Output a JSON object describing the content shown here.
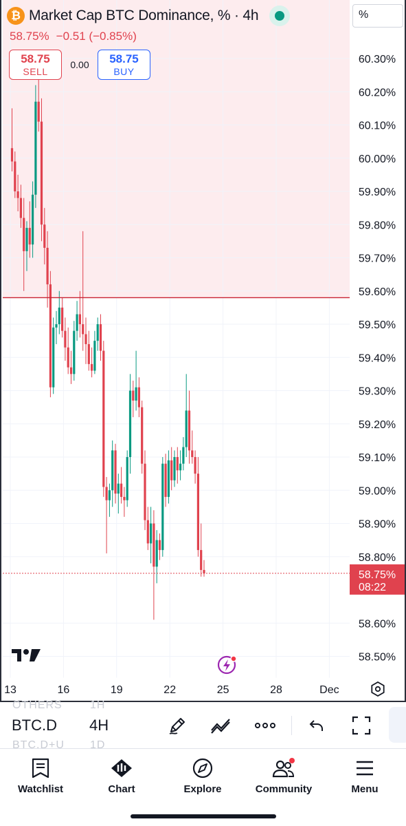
{
  "header": {
    "logo_glyph": "₿",
    "title": "Market Cap BTC Dominance, % · 4h",
    "change_pct": "58.75%",
    "change_abs": "−0.51 (−0.85%)",
    "unit": "%"
  },
  "trade": {
    "sell_price": "58.75",
    "sell_label": "SELL",
    "spread": "0.00",
    "buy_price": "58.75",
    "buy_label": "BUY"
  },
  "colors": {
    "up": "#089981",
    "down": "#e0424e",
    "alert_line": "#c82333",
    "zone": "#fdecee",
    "accent": "#2962ff"
  },
  "chart_data": {
    "type": "candlestick",
    "title": "Market Cap BTC Dominance, %",
    "interval": "4h",
    "ylim": [
      58.43,
      60.45
    ],
    "y_ticks": [
      "60.30%",
      "60.20%",
      "60.10%",
      "60.00%",
      "59.90%",
      "59.80%",
      "59.70%",
      "59.60%",
      "59.50%",
      "59.40%",
      "59.30%",
      "59.20%",
      "59.10%",
      "59.00%",
      "58.90%",
      "58.80%",
      "58.60%",
      "58.50%"
    ],
    "y_tick_values": [
      60.3,
      60.2,
      60.1,
      60.0,
      59.9,
      59.8,
      59.7,
      59.6,
      59.5,
      59.4,
      59.3,
      59.2,
      59.1,
      59.0,
      58.9,
      58.8,
      58.6,
      58.5
    ],
    "x_ticks": [
      "13",
      "16",
      "19",
      "22",
      "25",
      "28",
      "Dec"
    ],
    "x_tick_index": [
      0,
      18,
      36,
      54,
      72,
      90,
      108
    ],
    "alert_level": 59.58,
    "last_price": 58.75,
    "last_price_label": "58.75%",
    "countdown": "08:22",
    "candles": [
      {
        "o": 60.03,
        "h": 60.15,
        "l": 59.96,
        "c": 59.99
      },
      {
        "o": 59.99,
        "h": 60.02,
        "l": 59.88,
        "c": 59.9
      },
      {
        "o": 59.9,
        "h": 59.95,
        "l": 59.84,
        "c": 59.88
      },
      {
        "o": 59.88,
        "h": 59.92,
        "l": 59.79,
        "c": 59.82
      },
      {
        "o": 59.82,
        "h": 59.88,
        "l": 59.6,
        "c": 59.72
      },
      {
        "o": 59.72,
        "h": 59.81,
        "l": 59.66,
        "c": 59.79
      },
      {
        "o": 59.79,
        "h": 59.87,
        "l": 59.7,
        "c": 59.74
      },
      {
        "o": 59.74,
        "h": 59.93,
        "l": 59.7,
        "c": 59.89
      },
      {
        "o": 59.89,
        "h": 60.22,
        "l": 59.85,
        "c": 60.17
      },
      {
        "o": 60.17,
        "h": 60.25,
        "l": 60.08,
        "c": 60.11
      },
      {
        "o": 60.11,
        "h": 60.18,
        "l": 59.75,
        "c": 59.8
      },
      {
        "o": 59.8,
        "h": 59.85,
        "l": 59.68,
        "c": 59.73
      },
      {
        "o": 59.73,
        "h": 59.78,
        "l": 59.55,
        "c": 59.62
      },
      {
        "o": 59.62,
        "h": 59.66,
        "l": 59.28,
        "c": 59.31
      },
      {
        "o": 59.31,
        "h": 59.52,
        "l": 59.29,
        "c": 59.49
      },
      {
        "o": 59.49,
        "h": 59.54,
        "l": 59.44,
        "c": 59.5
      },
      {
        "o": 59.5,
        "h": 59.6,
        "l": 59.47,
        "c": 59.55
      },
      {
        "o": 59.55,
        "h": 59.58,
        "l": 59.46,
        "c": 59.48
      },
      {
        "o": 59.48,
        "h": 59.52,
        "l": 59.39,
        "c": 59.43
      },
      {
        "o": 59.43,
        "h": 59.49,
        "l": 59.35,
        "c": 59.37
      },
      {
        "o": 59.37,
        "h": 59.42,
        "l": 59.32,
        "c": 59.35
      },
      {
        "o": 59.35,
        "h": 59.51,
        "l": 59.33,
        "c": 59.48
      },
      {
        "o": 59.48,
        "h": 59.57,
        "l": 59.45,
        "c": 59.53
      },
      {
        "o": 59.53,
        "h": 59.6,
        "l": 59.46,
        "c": 59.5
      },
      {
        "o": 59.5,
        "h": 59.78,
        "l": 59.42,
        "c": 59.47
      },
      {
        "o": 59.47,
        "h": 59.52,
        "l": 59.38,
        "c": 59.44
      },
      {
        "o": 59.44,
        "h": 59.48,
        "l": 59.36,
        "c": 59.38
      },
      {
        "o": 59.38,
        "h": 59.43,
        "l": 59.34,
        "c": 59.36
      },
      {
        "o": 59.36,
        "h": 59.48,
        "l": 59.35,
        "c": 59.45
      },
      {
        "o": 59.45,
        "h": 59.52,
        "l": 59.42,
        "c": 59.5
      },
      {
        "o": 59.5,
        "h": 59.53,
        "l": 59.39,
        "c": 59.42
      },
      {
        "o": 59.42,
        "h": 59.45,
        "l": 58.98,
        "c": 59.01
      },
      {
        "o": 59.01,
        "h": 59.04,
        "l": 58.81,
        "c": 58.97
      },
      {
        "o": 58.97,
        "h": 59.02,
        "l": 58.92,
        "c": 59.0
      },
      {
        "o": 59.0,
        "h": 59.15,
        "l": 58.95,
        "c": 59.12
      },
      {
        "o": 59.12,
        "h": 59.14,
        "l": 58.96,
        "c": 58.99
      },
      {
        "o": 58.99,
        "h": 59.05,
        "l": 58.93,
        "c": 59.02
      },
      {
        "o": 59.02,
        "h": 59.07,
        "l": 58.96,
        "c": 58.98
      },
      {
        "o": 58.98,
        "h": 59.01,
        "l": 58.92,
        "c": 58.97
      },
      {
        "o": 58.97,
        "h": 59.12,
        "l": 58.95,
        "c": 59.1
      },
      {
        "o": 59.1,
        "h": 59.35,
        "l": 59.05,
        "c": 59.3
      },
      {
        "o": 59.3,
        "h": 59.33,
        "l": 59.22,
        "c": 59.27
      },
      {
        "o": 59.27,
        "h": 59.42,
        "l": 59.24,
        "c": 59.31
      },
      {
        "o": 59.31,
        "h": 59.34,
        "l": 59.22,
        "c": 59.25
      },
      {
        "o": 59.25,
        "h": 59.27,
        "l": 59.05,
        "c": 59.08
      },
      {
        "o": 59.08,
        "h": 59.12,
        "l": 58.88,
        "c": 58.91
      },
      {
        "o": 58.91,
        "h": 58.95,
        "l": 58.82,
        "c": 58.84
      },
      {
        "o": 58.84,
        "h": 58.95,
        "l": 58.78,
        "c": 58.9
      },
      {
        "o": 58.9,
        "h": 58.94,
        "l": 58.61,
        "c": 58.77
      },
      {
        "o": 58.77,
        "h": 58.88,
        "l": 58.72,
        "c": 58.85
      },
      {
        "o": 58.85,
        "h": 58.87,
        "l": 58.79,
        "c": 58.82
      },
      {
        "o": 58.82,
        "h": 59.1,
        "l": 58.8,
        "c": 59.08
      },
      {
        "o": 59.08,
        "h": 59.11,
        "l": 58.95,
        "c": 58.98
      },
      {
        "o": 58.98,
        "h": 59.12,
        "l": 58.96,
        "c": 59.09
      },
      {
        "o": 59.09,
        "h": 59.13,
        "l": 59.0,
        "c": 59.03
      },
      {
        "o": 59.03,
        "h": 59.12,
        "l": 59.01,
        "c": 59.1
      },
      {
        "o": 59.1,
        "h": 59.13,
        "l": 59.02,
        "c": 59.06
      },
      {
        "o": 59.06,
        "h": 59.12,
        "l": 59.03,
        "c": 59.08
      },
      {
        "o": 59.08,
        "h": 59.16,
        "l": 59.06,
        "c": 59.13
      },
      {
        "o": 59.13,
        "h": 59.35,
        "l": 59.1,
        "c": 59.24
      },
      {
        "o": 59.24,
        "h": 59.3,
        "l": 59.08,
        "c": 59.12
      },
      {
        "o": 59.12,
        "h": 59.18,
        "l": 59.08,
        "c": 59.1
      },
      {
        "o": 59.1,
        "h": 59.12,
        "l": 59.02,
        "c": 59.05
      },
      {
        "o": 59.05,
        "h": 59.1,
        "l": 58.8,
        "c": 58.82
      },
      {
        "o": 58.82,
        "h": 58.9,
        "l": 58.74,
        "c": 58.76
      },
      {
        "o": 58.76,
        "h": 58.79,
        "l": 58.74,
        "c": 58.75
      }
    ]
  },
  "toolbar": {
    "symbol": "BTC.D",
    "interval": "4H",
    "ghost_symbol_top": "OTHERS",
    "ghost_interval_top": "1H",
    "ghost_symbol_bottom": "BTC.D+U",
    "ghost_interval_bottom": "1D",
    "tools": [
      "pencil-icon",
      "trend-line-icon",
      "more-icon",
      "undo-icon",
      "fullscreen-icon"
    ]
  },
  "nav": {
    "items": [
      {
        "label": "Watchlist",
        "icon": "watchlist-icon"
      },
      {
        "label": "Chart",
        "icon": "chart-icon"
      },
      {
        "label": "Explore",
        "icon": "explore-icon"
      },
      {
        "label": "Community",
        "icon": "community-icon"
      },
      {
        "label": "Menu",
        "icon": "menu-icon"
      }
    ]
  }
}
